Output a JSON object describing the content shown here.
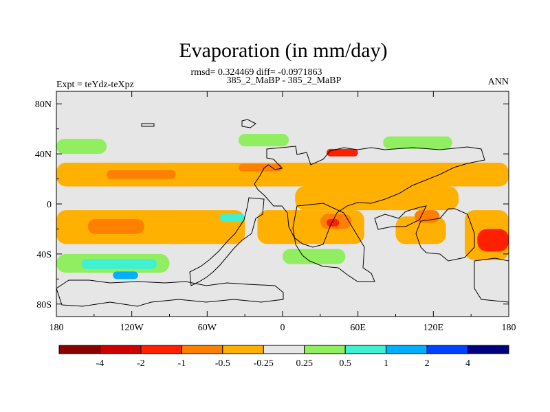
{
  "chart_data": {
    "type": "heatmap",
    "title": "Evaporation (in mm/day)",
    "stats_line": "rmsd= 0.324469 diff= -0.0971863",
    "case_line": "385_2_MaBP - 385_2_MaBP",
    "left_label": "Expt = teYdz-teXpz",
    "right_label": "ANN",
    "xlim": [
      -180,
      180
    ],
    "ylim": [
      -90,
      90
    ],
    "x_ticks": [
      {
        "value": -180,
        "label": "180"
      },
      {
        "value": -120,
        "label": "120W"
      },
      {
        "value": -60,
        "label": "60W"
      },
      {
        "value": 0,
        "label": "0"
      },
      {
        "value": 60,
        "label": "60E"
      },
      {
        "value": 120,
        "label": "120E"
      },
      {
        "value": 180,
        "label": "180"
      }
    ],
    "y_ticks": [
      {
        "value": 80,
        "label": "80N"
      },
      {
        "value": 40,
        "label": "40N"
      },
      {
        "value": 0,
        "label": "0"
      },
      {
        "value": -40,
        "label": "40S"
      },
      {
        "value": -80,
        "label": "80S"
      }
    ],
    "colorbar": {
      "colors": [
        "#8b0000",
        "#cc0000",
        "#ff2000",
        "#ff7f00",
        "#ffb000",
        "#e6e6e6",
        "#90ee60",
        "#40f0d0",
        "#00b0ff",
        "#0040ff",
        "#00007f"
      ],
      "labels": [
        "-4",
        "-2",
        "-1",
        "-0.5",
        "-0.25",
        "0.25",
        "0.5",
        "1",
        "2",
        "4"
      ]
    },
    "regions": [
      {
        "name": "n-pacific-green",
        "color": "#90ee60",
        "lon": [
          -180,
          -140
        ],
        "lat": [
          40,
          52
        ]
      },
      {
        "name": "n-atlantic-green",
        "color": "#90ee60",
        "lon": [
          -35,
          5
        ],
        "lat": [
          46,
          56
        ]
      },
      {
        "name": "asia-green",
        "color": "#90ee60",
        "lon": [
          80,
          135
        ],
        "lat": [
          44,
          54
        ]
      },
      {
        "name": "n-subtropics-orange",
        "color": "#ffb000",
        "lon": [
          -180,
          180
        ],
        "lat": [
          14,
          33
        ]
      },
      {
        "name": "n-pacific-orange-center",
        "color": "#ff7f00",
        "lon": [
          -140,
          -85
        ],
        "lat": [
          20,
          27
        ]
      },
      {
        "name": "n-atlantic-orange",
        "color": "#ff7f00",
        "lon": [
          -35,
          0
        ],
        "lat": [
          26,
          32
        ]
      },
      {
        "name": "mideast-red",
        "color": "#ff2000",
        "lon": [
          35,
          60
        ],
        "lat": [
          38,
          44
        ]
      },
      {
        "name": "equator-n-orange",
        "color": "#ffb000",
        "lon": [
          10,
          140
        ],
        "lat": [
          -5,
          14
        ]
      },
      {
        "name": "s-subtropics-orange",
        "color": "#ffb000",
        "lon": [
          -180,
          -30
        ],
        "lat": [
          -32,
          -5
        ]
      },
      {
        "name": "s-pacific-orange",
        "color": "#ff7f00",
        "lon": [
          -155,
          -110
        ],
        "lat": [
          -24,
          -12
        ]
      },
      {
        "name": "s-atlantic-orange",
        "color": "#ffb000",
        "lon": [
          -20,
          65
        ],
        "lat": [
          -32,
          -5
        ]
      },
      {
        "name": "indian-orange",
        "color": "#ff7f00",
        "lon": [
          30,
          55
        ],
        "lat": [
          -20,
          -8
        ]
      },
      {
        "name": "indian-red",
        "color": "#ff2000",
        "lon": [
          35,
          45
        ],
        "lat": [
          -18,
          -12
        ]
      },
      {
        "name": "s-indian-orange",
        "color": "#ffb000",
        "lon": [
          90,
          130
        ],
        "lat": [
          -32,
          -10
        ]
      },
      {
        "name": "indonesia-orange",
        "color": "#ff7f00",
        "lon": [
          105,
          125
        ],
        "lat": [
          -15,
          -5
        ]
      },
      {
        "name": "se-pacific-orange",
        "color": "#ffb000",
        "lon": [
          145,
          180
        ],
        "lat": [
          -45,
          -5
        ]
      },
      {
        "name": "se-pacific-red",
        "color": "#ff2000",
        "lon": [
          155,
          180
        ],
        "lat": [
          -38,
          -20
        ]
      },
      {
        "name": "s-ocean-green",
        "color": "#90ee60",
        "lon": [
          -180,
          -90
        ],
        "lat": [
          -55,
          -40
        ]
      },
      {
        "name": "s-ocean-teal",
        "color": "#40f0d0",
        "lon": [
          -160,
          -100
        ],
        "lat": [
          -52,
          -44
        ]
      },
      {
        "name": "s-ocean-blue",
        "color": "#00b0ff",
        "lon": [
          -135,
          -115
        ],
        "lat": [
          -60,
          -54
        ]
      },
      {
        "name": "s-atlantic-green",
        "color": "#90ee60",
        "lon": [
          0,
          50
        ],
        "lat": [
          -48,
          -36
        ]
      },
      {
        "name": "mid-atlantic-teal",
        "color": "#40f0d0",
        "lon": [
          -50,
          -30
        ],
        "lat": [
          -14,
          -8
        ]
      }
    ]
  }
}
